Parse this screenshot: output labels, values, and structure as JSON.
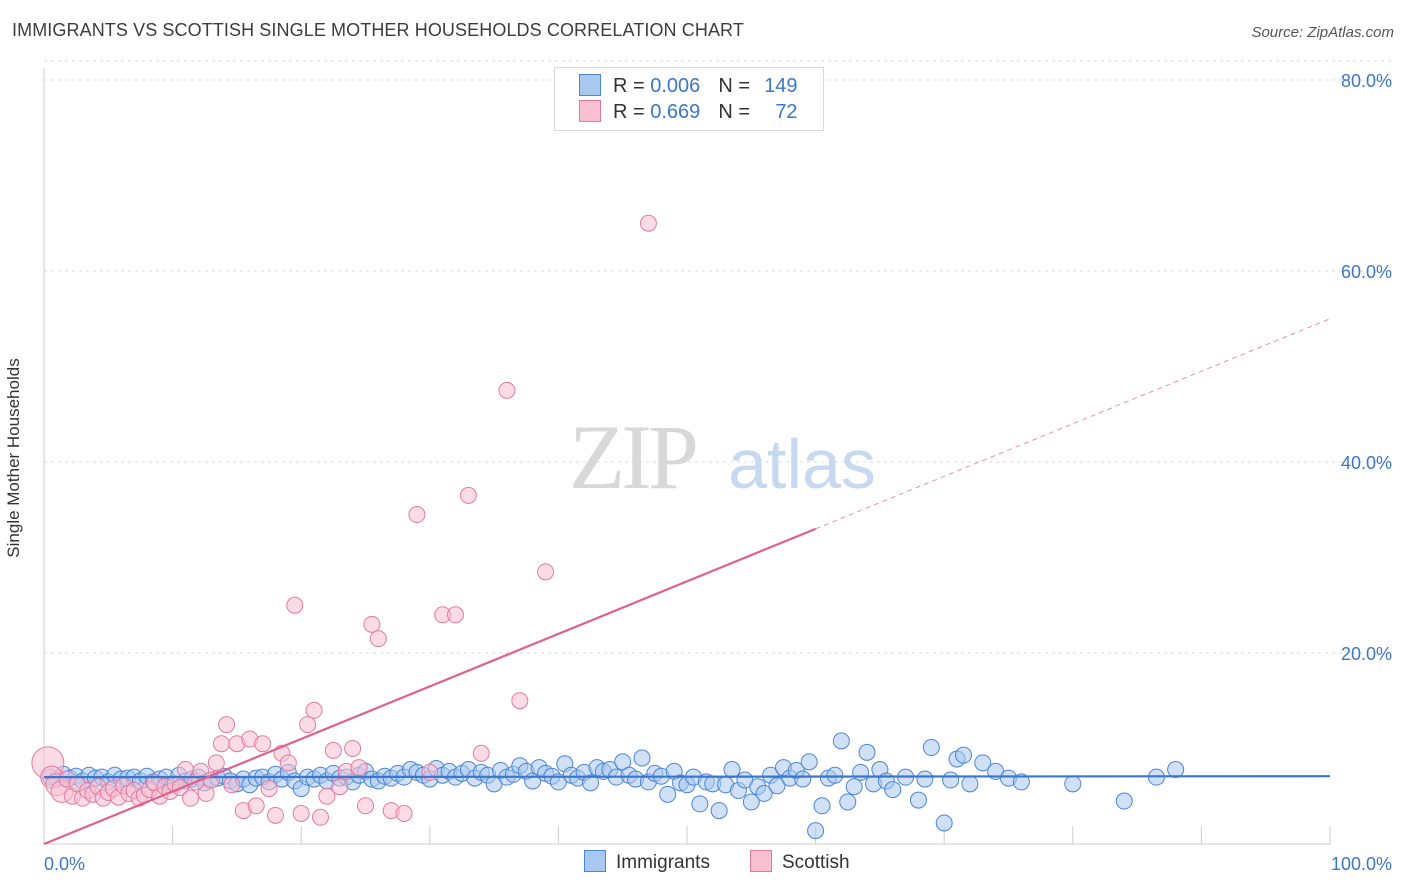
{
  "title": "IMMIGRANTS VS SCOTTISH SINGLE MOTHER HOUSEHOLDS CORRELATION CHART",
  "source": "Source: ZipAtlas.com",
  "watermark": {
    "zip": "ZIP",
    "atlas": "atlas"
  },
  "colors": {
    "immigrants_fill": "#a9c8f0",
    "immigrants_stroke": "#4a86d4",
    "immigrants_line": "#3a76cc",
    "scottish_fill": "#f8bfd1",
    "scottish_stroke": "#e27aa0",
    "scottish_line": "#e0608c",
    "axis_text": "#3b77c9",
    "grid": "#d8d8d8"
  },
  "legend_top": [
    {
      "r_label": "R = ",
      "r_value": "0.006",
      "n_label": "N = ",
      "n_value": "149"
    },
    {
      "r_label": "R = ",
      "r_value": "0.669",
      "n_label": "N = ",
      "n_value": "72"
    }
  ],
  "legend_bottom": [
    {
      "label": "Immigrants"
    },
    {
      "label": "Scottish"
    }
  ],
  "chart_data": {
    "type": "scatter",
    "title": "IMMIGRANTS VS SCOTTISH SINGLE MOTHER HOUSEHOLDS CORRELATION CHART",
    "xlabel": "",
    "ylabel": "Single Mother Households",
    "xlim": [
      0,
      100
    ],
    "ylim": [
      0,
      82
    ],
    "x_tick_labels": [
      {
        "value": 0,
        "label": "0.0%"
      },
      {
        "value": 100,
        "label": "100.0%"
      }
    ],
    "y_tick_labels": [
      {
        "value": 20,
        "label": "20.0%"
      },
      {
        "value": 40,
        "label": "40.0%"
      },
      {
        "value": 60,
        "label": "60.0%"
      },
      {
        "value": 80,
        "label": "80.0%"
      }
    ],
    "grid": true,
    "legend_position": "top-center",
    "series": [
      {
        "name": "Immigrants",
        "r": 0.006,
        "n": 149,
        "trend": {
          "x0": 0,
          "y0": 7.0,
          "x1": 100,
          "y1": 7.1,
          "dashed_from": null
        },
        "points": [
          [
            0.5,
            7.0
          ],
          [
            1,
            6.8
          ],
          [
            1.5,
            7.3
          ],
          [
            2,
            6.9
          ],
          [
            2.5,
            7.1
          ],
          [
            3,
            6.6
          ],
          [
            3.5,
            7.2
          ],
          [
            4,
            6.9
          ],
          [
            4.5,
            7.0
          ],
          [
            5,
            6.5
          ],
          [
            5.5,
            7.2
          ],
          [
            6,
            6.8
          ],
          [
            6.5,
            6.9
          ],
          [
            7,
            7.0
          ],
          [
            7.5,
            6.6
          ],
          [
            8,
            7.1
          ],
          [
            8.5,
            6.5
          ],
          [
            9,
            6.8
          ],
          [
            9.5,
            7.0
          ],
          [
            10,
            6.3
          ],
          [
            10.5,
            7.2
          ],
          [
            11,
            6.6
          ],
          [
            11.5,
            6.8
          ],
          [
            12,
            7.0
          ],
          [
            12.5,
            6.4
          ],
          [
            13,
            6.7
          ],
          [
            13.5,
            6.9
          ],
          [
            14,
            7.1
          ],
          [
            14.5,
            6.6
          ],
          [
            15,
            6.3
          ],
          [
            15.5,
            6.8
          ],
          [
            16,
            6.2
          ],
          [
            16.5,
            6.9
          ],
          [
            17,
            7.0
          ],
          [
            17.5,
            6.5
          ],
          [
            18,
            7.3
          ],
          [
            18.5,
            6.8
          ],
          [
            19,
            7.5
          ],
          [
            19.5,
            6.6
          ],
          [
            20,
            5.8
          ],
          [
            20.5,
            7.0
          ],
          [
            21,
            6.8
          ],
          [
            21.5,
            7.2
          ],
          [
            22,
            6.6
          ],
          [
            22.5,
            7.4
          ],
          [
            23,
            6.9
          ],
          [
            23.5,
            7.0
          ],
          [
            24,
            6.5
          ],
          [
            24.5,
            7.2
          ],
          [
            25,
            7.6
          ],
          [
            25.5,
            6.8
          ],
          [
            26,
            6.6
          ],
          [
            26.5,
            7.1
          ],
          [
            27,
            6.9
          ],
          [
            27.5,
            7.4
          ],
          [
            28,
            7.0
          ],
          [
            28.5,
            7.8
          ],
          [
            29,
            7.5
          ],
          [
            29.5,
            7.2
          ],
          [
            30,
            6.8
          ],
          [
            30.5,
            7.9
          ],
          [
            31,
            7.2
          ],
          [
            31.5,
            7.6
          ],
          [
            32,
            7.0
          ],
          [
            32.5,
            7.4
          ],
          [
            33,
            7.8
          ],
          [
            33.5,
            6.9
          ],
          [
            34,
            7.5
          ],
          [
            34.5,
            7.2
          ],
          [
            35,
            6.3
          ],
          [
            35.5,
            7.7
          ],
          [
            36,
            7.0
          ],
          [
            36.5,
            7.3
          ],
          [
            37,
            8.2
          ],
          [
            37.5,
            7.6
          ],
          [
            38,
            6.6
          ],
          [
            38.5,
            8.0
          ],
          [
            39,
            7.4
          ],
          [
            39.5,
            7.1
          ],
          [
            40,
            6.5
          ],
          [
            40.5,
            8.4
          ],
          [
            41,
            7.2
          ],
          [
            41.5,
            6.9
          ],
          [
            42,
            7.5
          ],
          [
            42.5,
            6.4
          ],
          [
            43,
            8.0
          ],
          [
            43.5,
            7.6
          ],
          [
            44,
            7.8
          ],
          [
            44.5,
            7.0
          ],
          [
            45,
            8.6
          ],
          [
            45.5,
            7.2
          ],
          [
            46,
            6.8
          ],
          [
            46.5,
            9.0
          ],
          [
            47,
            6.5
          ],
          [
            47.5,
            7.4
          ],
          [
            48,
            7.1
          ],
          [
            48.5,
            5.2
          ],
          [
            49,
            7.6
          ],
          [
            49.5,
            6.4
          ],
          [
            50,
            6.2
          ],
          [
            50.5,
            7.0
          ],
          [
            51,
            4.2
          ],
          [
            51.5,
            6.5
          ],
          [
            52,
            6.3
          ],
          [
            52.5,
            3.5
          ],
          [
            53,
            6.2
          ],
          [
            53.5,
            7.8
          ],
          [
            54,
            5.6
          ],
          [
            54.5,
            6.7
          ],
          [
            55,
            4.4
          ],
          [
            55.5,
            6.0
          ],
          [
            56,
            5.3
          ],
          [
            56.5,
            7.2
          ],
          [
            57,
            6.1
          ],
          [
            57.5,
            8.0
          ],
          [
            58,
            6.9
          ],
          [
            58.5,
            7.7
          ],
          [
            59,
            6.8
          ],
          [
            59.5,
            8.6
          ],
          [
            60,
            1.4
          ],
          [
            60.5,
            4.0
          ],
          [
            61,
            6.9
          ],
          [
            61.5,
            7.2
          ],
          [
            62,
            10.8
          ],
          [
            62.5,
            4.4
          ],
          [
            63,
            6.0
          ],
          [
            63.5,
            7.5
          ],
          [
            64,
            9.6
          ],
          [
            64.5,
            6.3
          ],
          [
            65,
            7.8
          ],
          [
            65.5,
            6.6
          ],
          [
            66,
            5.7
          ],
          [
            67,
            7.0
          ],
          [
            68,
            4.6
          ],
          [
            68.5,
            6.8
          ],
          [
            69,
            10.1
          ],
          [
            70,
            2.2
          ],
          [
            70.5,
            6.7
          ],
          [
            71,
            8.9
          ],
          [
            71.5,
            9.3
          ],
          [
            72,
            6.3
          ],
          [
            73,
            8.5
          ],
          [
            74,
            7.6
          ],
          [
            75,
            6.9
          ],
          [
            76,
            6.5
          ],
          [
            80,
            6.3
          ],
          [
            84,
            4.5
          ],
          [
            86.5,
            7.0
          ],
          [
            88,
            7.8
          ]
        ]
      },
      {
        "name": "Scottish",
        "r": 0.669,
        "n": 72,
        "trend": {
          "x0": 0,
          "y0": 0.0,
          "x1": 100,
          "y1": 55.0,
          "dashed_from": 60
        },
        "points": [
          [
            0.3,
            8.5
          ],
          [
            0.6,
            7.0
          ],
          [
            1,
            6.2
          ],
          [
            1.4,
            5.5
          ],
          [
            1.8,
            6.8
          ],
          [
            2.2,
            5.0
          ],
          [
            2.6,
            6.3
          ],
          [
            3,
            4.8
          ],
          [
            3.4,
            5.6
          ],
          [
            3.8,
            5.2
          ],
          [
            4.2,
            6.0
          ],
          [
            4.6,
            4.8
          ],
          [
            5,
            5.4
          ],
          [
            5.4,
            5.8
          ],
          [
            5.8,
            4.9
          ],
          [
            6.2,
            6.1
          ],
          [
            6.6,
            5.3
          ],
          [
            7,
            5.6
          ],
          [
            7.4,
            4.8
          ],
          [
            7.8,
            5.1
          ],
          [
            8.2,
            5.7
          ],
          [
            8.6,
            6.4
          ],
          [
            9,
            5.0
          ],
          [
            9.4,
            6.0
          ],
          [
            9.8,
            5.5
          ],
          [
            10.2,
            6.3
          ],
          [
            10.6,
            5.9
          ],
          [
            11,
            7.8
          ],
          [
            11.4,
            4.8
          ],
          [
            11.8,
            6.5
          ],
          [
            12.2,
            7.6
          ],
          [
            12.6,
            5.3
          ],
          [
            13,
            6.7
          ],
          [
            13.4,
            8.5
          ],
          [
            13.8,
            10.5
          ],
          [
            14.2,
            12.5
          ],
          [
            14.6,
            6.2
          ],
          [
            15,
            10.5
          ],
          [
            15.5,
            3.5
          ],
          [
            16,
            11.0
          ],
          [
            16.5,
            4.0
          ],
          [
            17,
            10.5
          ],
          [
            17.5,
            5.8
          ],
          [
            18,
            3.0
          ],
          [
            18.5,
            9.5
          ],
          [
            19,
            8.5
          ],
          [
            19.5,
            25.0
          ],
          [
            20,
            3.2
          ],
          [
            20.5,
            12.5
          ],
          [
            21,
            14.0
          ],
          [
            21.5,
            2.8
          ],
          [
            22,
            5.0
          ],
          [
            22.5,
            9.8
          ],
          [
            23,
            6.0
          ],
          [
            23.5,
            7.6
          ],
          [
            24,
            10.0
          ],
          [
            24.5,
            8.0
          ],
          [
            25,
            4.0
          ],
          [
            25.5,
            23.0
          ],
          [
            26,
            21.5
          ],
          [
            27,
            3.5
          ],
          [
            28,
            3.2
          ],
          [
            29,
            34.5
          ],
          [
            30,
            7.5
          ],
          [
            31,
            24.0
          ],
          [
            32,
            24.0
          ],
          [
            33,
            36.5
          ],
          [
            34,
            9.5
          ],
          [
            36,
            47.5
          ],
          [
            37,
            15.0
          ],
          [
            39,
            28.5
          ],
          [
            47,
            65.0
          ]
        ]
      }
    ]
  }
}
